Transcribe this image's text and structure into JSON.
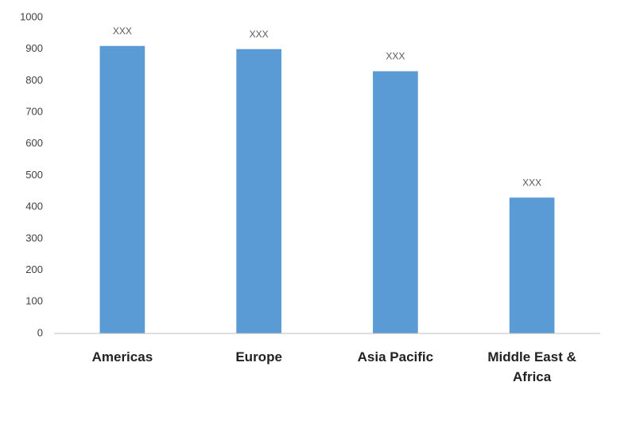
{
  "chart_data": {
    "type": "bar",
    "categories": [
      "Americas",
      "Europe",
      "Asia Pacific",
      "Middle East & Africa"
    ],
    "values": [
      910,
      900,
      830,
      430
    ],
    "value_labels": [
      "XXX",
      "XXX",
      "XXX",
      "XXX"
    ],
    "color": "#5b9bd5",
    "ylim": [
      0,
      1000
    ],
    "yticks": [
      0,
      100,
      200,
      300,
      400,
      500,
      600,
      700,
      800,
      900,
      1000
    ],
    "grid": false
  }
}
